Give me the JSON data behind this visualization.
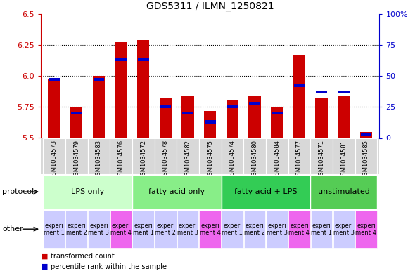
{
  "title": "GDS5311 / ILMN_1250821",
  "samples": [
    "GSM1034573",
    "GSM1034579",
    "GSM1034583",
    "GSM1034576",
    "GSM1034572",
    "GSM1034578",
    "GSM1034582",
    "GSM1034575",
    "GSM1034574",
    "GSM1034580",
    "GSM1034584",
    "GSM1034577",
    "GSM1034571",
    "GSM1034581",
    "GSM1034585"
  ],
  "red_values": [
    5.98,
    5.75,
    6.0,
    6.27,
    6.29,
    5.82,
    5.84,
    5.72,
    5.81,
    5.84,
    5.75,
    6.17,
    5.82,
    5.84,
    5.55
  ],
  "blue_values": [
    47,
    20,
    47,
    63,
    63,
    25,
    20,
    13,
    25,
    28,
    20,
    42,
    37,
    37,
    3
  ],
  "y_min": 5.5,
  "y_max": 6.5,
  "y_ticks": [
    5.5,
    5.75,
    6.0,
    6.25,
    6.5
  ],
  "y2_ticks": [
    0,
    25,
    50,
    75,
    100
  ],
  "protocols": [
    {
      "label": "LPS only",
      "start": 0,
      "end": 4,
      "color": "#ccffcc"
    },
    {
      "label": "fatty acid only",
      "start": 4,
      "end": 8,
      "color": "#88ee88"
    },
    {
      "label": "fatty acid + LPS",
      "start": 8,
      "end": 12,
      "color": "#33cc55"
    },
    {
      "label": "unstimulated",
      "start": 12,
      "end": 15,
      "color": "#55cc55"
    }
  ],
  "other_colors": [
    "#ccccff",
    "#ccccff",
    "#ccccff",
    "#ee66ee",
    "#ccccff",
    "#ccccff",
    "#ccccff",
    "#ee66ee",
    "#ccccff",
    "#ccccff",
    "#ccccff",
    "#ee66ee",
    "#ccccff",
    "#ccccff",
    "#ee66ee"
  ],
  "other_labels": [
    "experi\nment 1",
    "experi\nment 2",
    "experi\nment 3",
    "experi\nment 4",
    "experi\nment 1",
    "experi\nment 2",
    "experi\nment 3",
    "experi\nment 4",
    "experi\nment 1",
    "experi\nment 2",
    "experi\nment 3",
    "experi\nment 4",
    "experi\nment 1",
    "experi\nment 3",
    "experi\nment 4"
  ],
  "bar_width": 0.55,
  "red_color": "#cc0000",
  "blue_color": "#0000cc",
  "sample_bg": "#d8d8d8",
  "chart_bg": "#ffffff",
  "title_fontsize": 10,
  "tick_fontsize": 7,
  "sample_fontsize": 6,
  "label_fontsize": 8,
  "legend_fontsize": 7,
  "protocol_fontsize": 8,
  "other_fontsize": 6
}
